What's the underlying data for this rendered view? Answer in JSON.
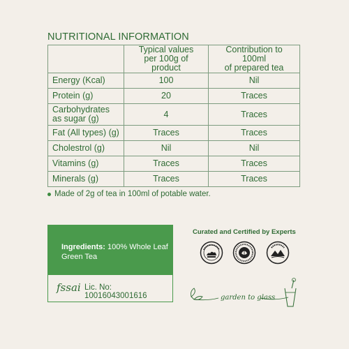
{
  "nutrition": {
    "title": "NUTRITIONAL INFORMATION",
    "headers": [
      "",
      "Typical values per 100g of product",
      "Contribution to 100ml of prepared tea"
    ],
    "header_lines": {
      "col2_line1": "Typical values",
      "col2_line2": "per 100g of product",
      "col3_line1": "Contribution to 100ml",
      "col3_line2": "of prepared tea"
    },
    "rows": [
      {
        "nutrient": "Energy (Kcal)",
        "per_100g": "100",
        "per_100ml": "Nil"
      },
      {
        "nutrient": "Protein (g)",
        "per_100g": "20",
        "per_100ml": "Traces"
      },
      {
        "nutrient_line1": "Carbohydrates",
        "nutrient_line2": "as sugar (g)",
        "per_100g": "4",
        "per_100ml": "Traces"
      },
      {
        "nutrient": "Fat (All types) (g)",
        "per_100g": "Traces",
        "per_100ml": "Traces"
      },
      {
        "nutrient": "Cholestrol (g)",
        "per_100g": "Nil",
        "per_100ml": "Nil"
      },
      {
        "nutrient": "Vitamins (g)",
        "per_100g": "Traces",
        "per_100ml": "Traces"
      },
      {
        "nutrient": "Minerals (g)",
        "per_100g": "Traces",
        "per_100ml": "Traces"
      }
    ],
    "note": "Made of 2g of tea in 100ml of potable water."
  },
  "ingredients": {
    "label": "Ingredients:",
    "value_line1": "100% Whole Leaf",
    "value_line2": "Green Tea"
  },
  "license": {
    "logo_text": "fssai",
    "text": "Lic. No: 10016043001616"
  },
  "certifications": {
    "title": "Curated and Certified by Experts",
    "badges": [
      "assam-tea-badge",
      "tea-board-badge",
      "darjeeling-badge"
    ]
  },
  "tagline": "garden to glass",
  "colors": {
    "background": "#f3efe9",
    "brand_green": "#2f6b34",
    "box_green": "#4a9a4c",
    "table_border": "#7d9c7f"
  }
}
